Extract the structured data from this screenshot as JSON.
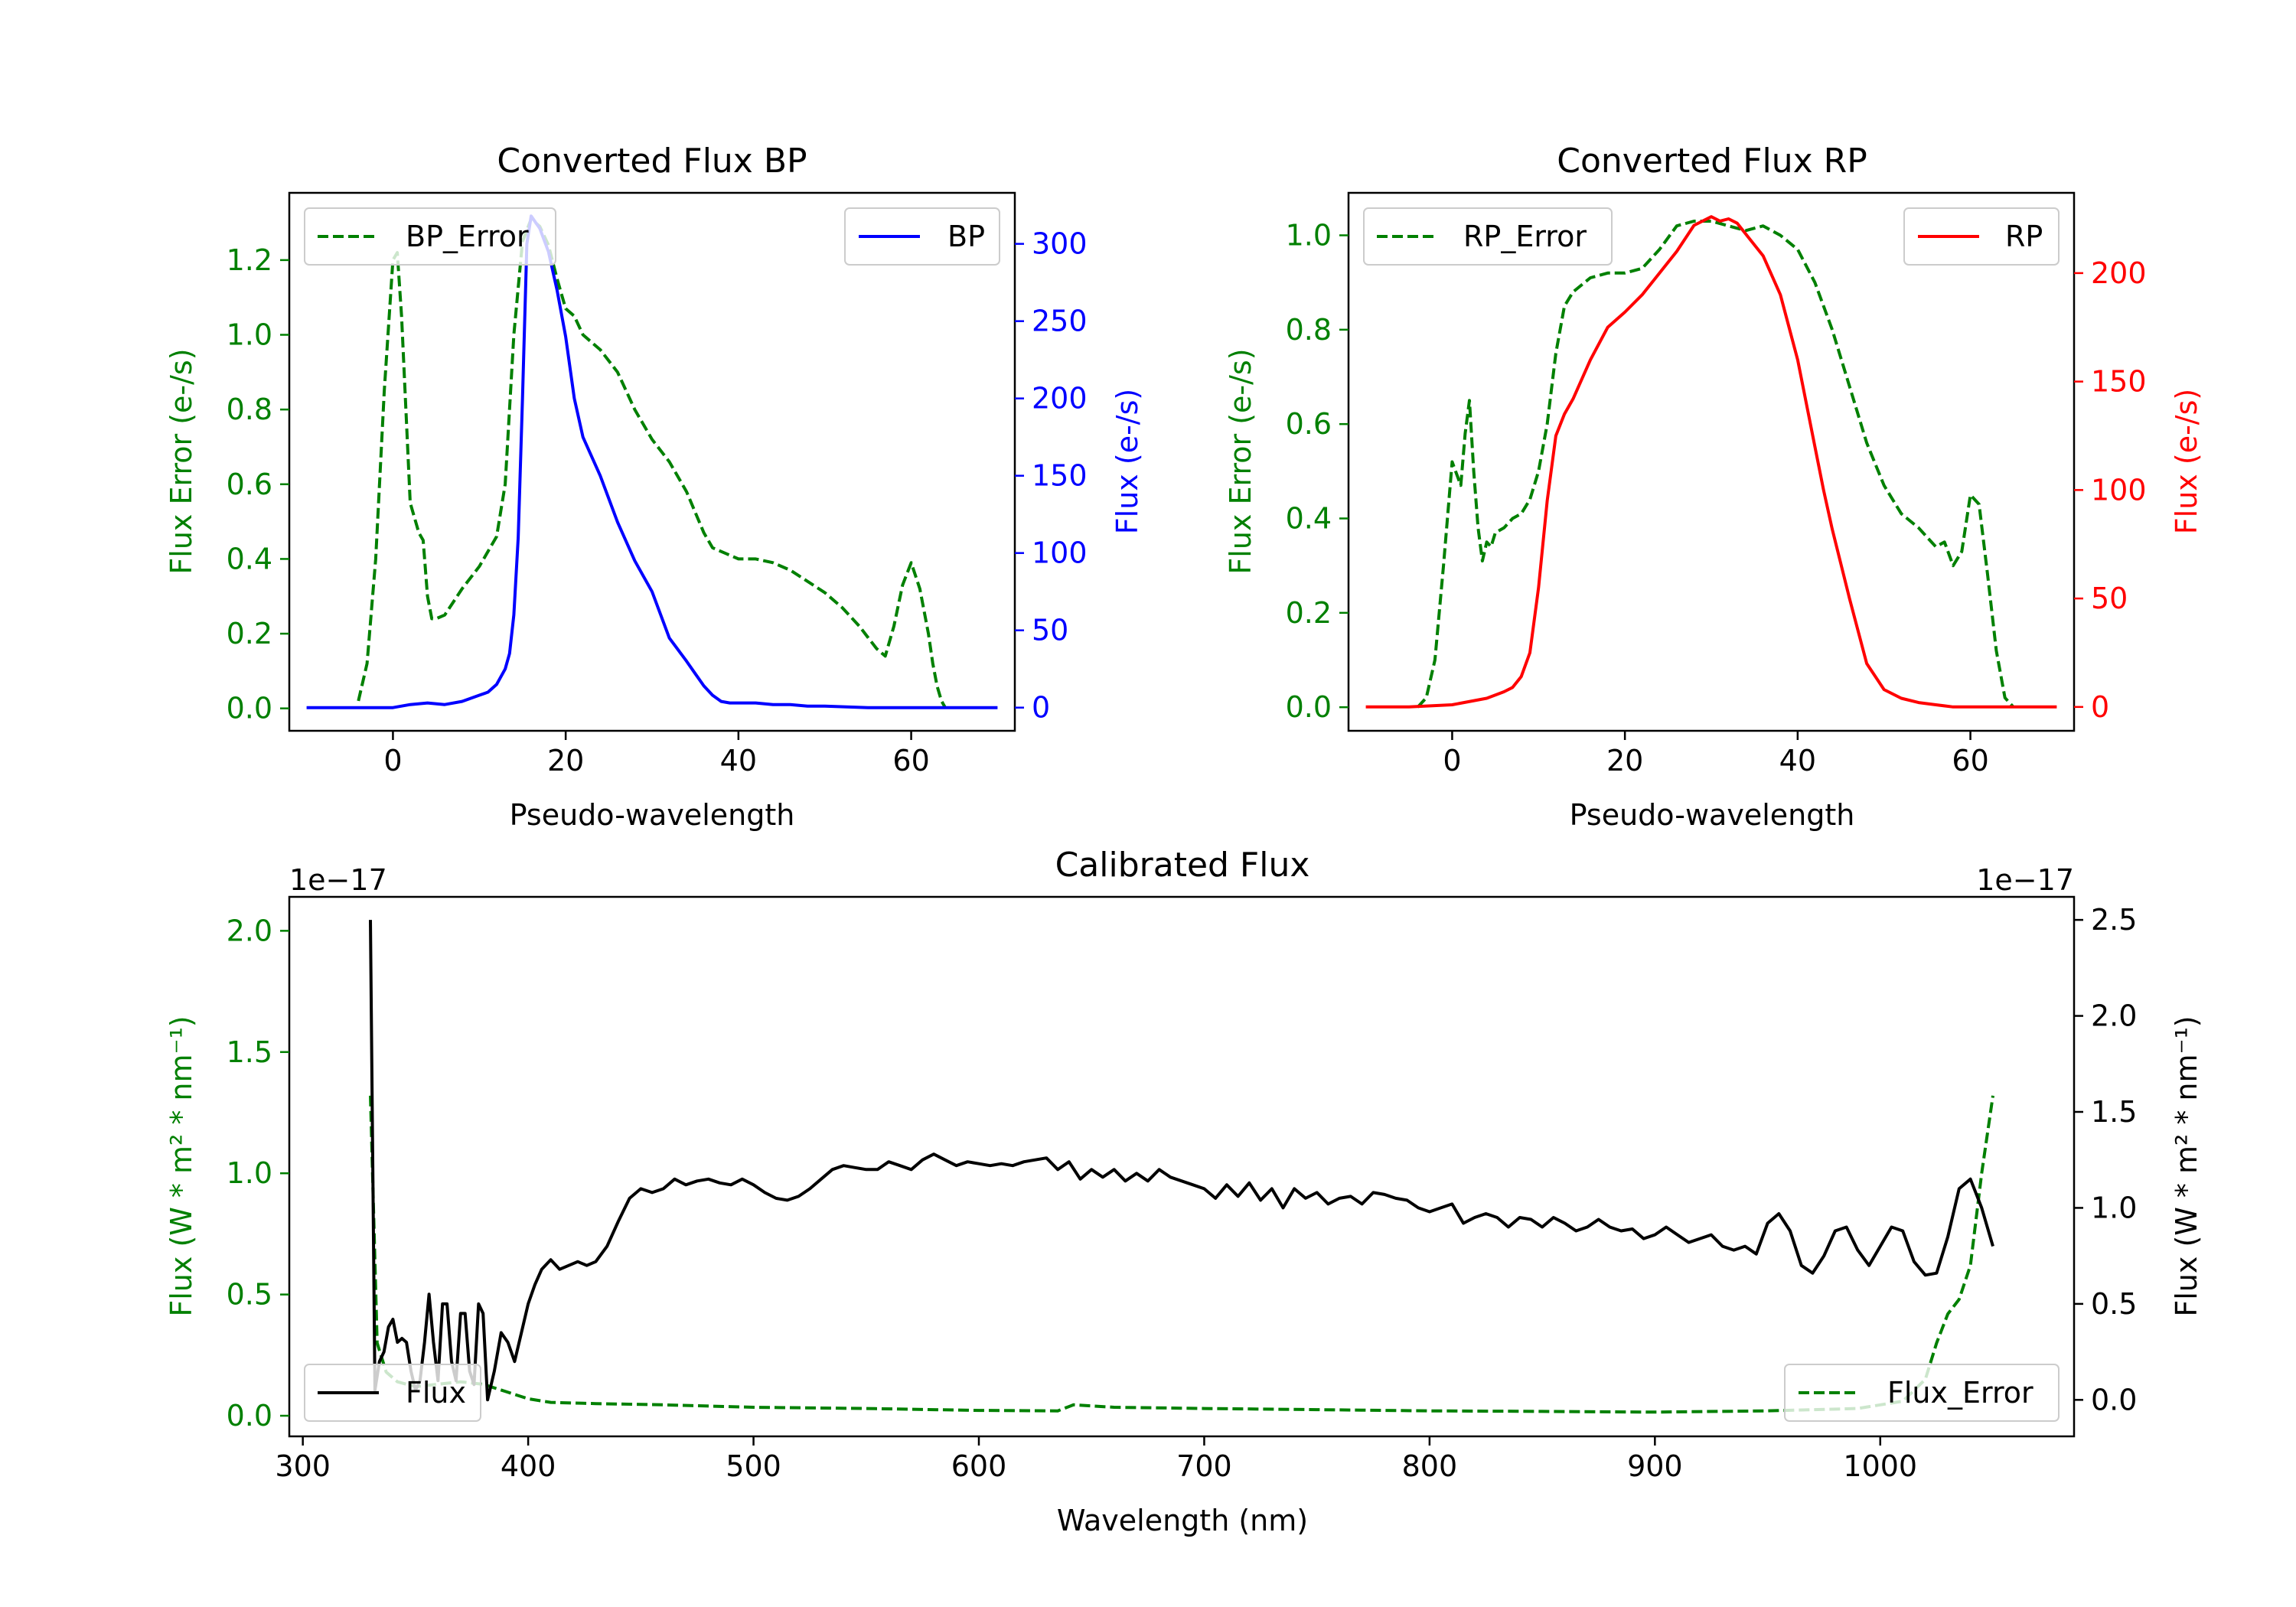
{
  "figure": {
    "background": "#ffffff"
  },
  "colors": {
    "green": "#008000",
    "blue": "#0000ff",
    "red": "#ff0000",
    "black": "#000000",
    "axis": "#000000"
  },
  "chart_data": [
    {
      "id": "bp",
      "type": "line",
      "title": "Converted Flux BP",
      "xlabel": "Pseudo-wavelength",
      "ylabel_left": "Flux Error (e-/s)",
      "ylabel_right": "Flux (e-/s)",
      "xlim": [
        -12,
        72
      ],
      "ylim_left": [
        -0.06,
        1.38
      ],
      "ylim_right": [
        -15,
        333
      ],
      "xticks": [
        0,
        20,
        40,
        60
      ],
      "xtick_labels": [
        "0",
        "20",
        "40",
        "60"
      ],
      "yticks_left": [
        0.0,
        0.2,
        0.4,
        0.6,
        0.8,
        1.0,
        1.2
      ],
      "ytick_labels_left": [
        "0.0",
        "0.2",
        "0.4",
        "0.6",
        "0.8",
        "1.0",
        "1.2"
      ],
      "yticks_right": [
        0,
        50,
        100,
        150,
        200,
        250,
        300
      ],
      "ytick_labels_right": [
        "0",
        "50",
        "100",
        "150",
        "200",
        "250",
        "300"
      ],
      "left_color": "green",
      "right_color": "blue",
      "legend_left": {
        "label": "BP_Error",
        "position": "upper-left",
        "style": "dashed",
        "color": "green"
      },
      "legend_right": {
        "label": "BP",
        "position": "upper-right",
        "style": "solid",
        "color": "blue"
      },
      "series": [
        {
          "name": "BP_Error",
          "axis": "left",
          "style": "dashed",
          "color": "green",
          "x": [
            -4,
            -3,
            -2,
            -1,
            0,
            0.5,
            1,
            2,
            3,
            3.5,
            4,
            4.5,
            5,
            6,
            8,
            10,
            12,
            13,
            14,
            15,
            16,
            17,
            18,
            19,
            20,
            21,
            22,
            23,
            24,
            26,
            28,
            30,
            32,
            34,
            36,
            37,
            38,
            40,
            42,
            44,
            46,
            48,
            50,
            52,
            54,
            55,
            56,
            57,
            58,
            59,
            60,
            61,
            62,
            62.5,
            63,
            63.5,
            64
          ],
          "y": [
            0.02,
            0.12,
            0.4,
            0.85,
            1.2,
            1.22,
            1.05,
            0.55,
            0.47,
            0.45,
            0.3,
            0.24,
            0.24,
            0.25,
            0.32,
            0.38,
            0.46,
            0.6,
            1.0,
            1.25,
            1.31,
            1.29,
            1.24,
            1.15,
            1.07,
            1.05,
            1.0,
            0.98,
            0.96,
            0.9,
            0.8,
            0.72,
            0.66,
            0.58,
            0.47,
            0.43,
            0.42,
            0.4,
            0.4,
            0.39,
            0.37,
            0.34,
            0.31,
            0.27,
            0.22,
            0.19,
            0.16,
            0.14,
            0.22,
            0.33,
            0.39,
            0.32,
            0.2,
            0.12,
            0.06,
            0.02,
            0.0
          ]
        },
        {
          "name": "BP",
          "axis": "right",
          "style": "solid",
          "color": "blue",
          "x": [
            -10,
            -6,
            -4,
            -2,
            0,
            2,
            4,
            6,
            8,
            10,
            11,
            12,
            13,
            13.5,
            14,
            14.5,
            15,
            15.5,
            16,
            17,
            18,
            19,
            20,
            21,
            22,
            24,
            26,
            28,
            30,
            32,
            34,
            35,
            36,
            37,
            38,
            39,
            40,
            42,
            44,
            46,
            48,
            50,
            55,
            60,
            65,
            70
          ],
          "y": [
            0,
            0,
            0,
            0,
            0,
            2,
            3,
            2,
            4,
            8,
            10,
            15,
            25,
            35,
            60,
            110,
            200,
            300,
            318,
            310,
            295,
            270,
            240,
            200,
            175,
            150,
            120,
            95,
            75,
            45,
            30,
            22,
            14,
            8,
            4,
            3,
            3,
            3,
            2,
            2,
            1,
            1,
            0,
            0,
            0,
            0
          ]
        }
      ]
    },
    {
      "id": "rp",
      "type": "line",
      "title": "Converted Flux RP",
      "xlabel": "Pseudo-wavelength",
      "ylabel_left": "Flux Error (e-/s)",
      "ylabel_right": "Flux (e-/s)",
      "xlim": [
        -12,
        72
      ],
      "ylim_left": [
        -0.05,
        1.09
      ],
      "ylim_right": [
        -11,
        237
      ],
      "xticks": [
        0,
        20,
        40,
        60
      ],
      "xtick_labels": [
        "0",
        "20",
        "40",
        "60"
      ],
      "yticks_left": [
        0.0,
        0.2,
        0.4,
        0.6,
        0.8,
        1.0
      ],
      "ytick_labels_left": [
        "0.0",
        "0.2",
        "0.4",
        "0.6",
        "0.8",
        "1.0"
      ],
      "yticks_right": [
        0,
        50,
        100,
        150,
        200
      ],
      "ytick_labels_right": [
        "0",
        "50",
        "100",
        "150",
        "200"
      ],
      "left_color": "green",
      "right_color": "red",
      "legend_left": {
        "label": "RP_Error",
        "position": "upper-left",
        "style": "dashed",
        "color": "green"
      },
      "legend_right": {
        "label": "RP",
        "position": "upper-right",
        "style": "solid",
        "color": "red"
      },
      "series": [
        {
          "name": "RP_Error",
          "axis": "left",
          "style": "dashed",
          "color": "green",
          "x": [
            -4,
            -3,
            -2,
            -1,
            0,
            1,
            1.5,
            2,
            2.5,
            3,
            3.5,
            4,
            4.5,
            5,
            6,
            7,
            8,
            9,
            10,
            11,
            12,
            13,
            14,
            16,
            18,
            20,
            22,
            24,
            26,
            28,
            30,
            32,
            34,
            36,
            38,
            40,
            42,
            44,
            46,
            48,
            50,
            52,
            54,
            55,
            56,
            57,
            58,
            59,
            60,
            61,
            62,
            63,
            64,
            65
          ],
          "y": [
            0.0,
            0.02,
            0.1,
            0.3,
            0.52,
            0.47,
            0.58,
            0.65,
            0.5,
            0.38,
            0.31,
            0.35,
            0.34,
            0.37,
            0.38,
            0.4,
            0.41,
            0.44,
            0.5,
            0.6,
            0.75,
            0.85,
            0.88,
            0.91,
            0.92,
            0.92,
            0.93,
            0.97,
            1.02,
            1.03,
            1.03,
            1.02,
            1.01,
            1.02,
            1.0,
            0.97,
            0.9,
            0.8,
            0.68,
            0.56,
            0.47,
            0.41,
            0.38,
            0.36,
            0.34,
            0.35,
            0.3,
            0.33,
            0.45,
            0.43,
            0.28,
            0.12,
            0.02,
            0.0
          ]
        },
        {
          "name": "RP",
          "axis": "right",
          "style": "solid",
          "color": "red",
          "x": [
            -10,
            -5,
            0,
            4,
            6,
            7,
            8,
            9,
            10,
            11,
            12,
            13,
            14,
            16,
            18,
            20,
            22,
            24,
            26,
            28,
            30,
            31,
            32,
            33,
            34,
            36,
            38,
            40,
            42,
            43,
            44,
            46,
            48,
            50,
            52,
            54,
            56,
            58,
            60,
            65,
            70
          ],
          "y": [
            0,
            0,
            1,
            4,
            7,
            9,
            14,
            25,
            55,
            95,
            125,
            135,
            142,
            160,
            175,
            182,
            190,
            200,
            210,
            222,
            226,
            224,
            225,
            223,
            218,
            208,
            190,
            160,
            120,
            100,
            82,
            50,
            20,
            8,
            4,
            2,
            1,
            0,
            0,
            0,
            0
          ]
        }
      ]
    },
    {
      "id": "calibrated",
      "type": "line",
      "title": "Calibrated Flux",
      "xlabel": "Wavelength (nm)",
      "ylabel_left": "Flux (W * m² * nm⁻¹)",
      "ylabel_right": "Flux (W * m² * nm⁻¹)",
      "offset_left": "1e−17",
      "offset_right": "1e−17",
      "xlim": [
        294,
        1086
      ],
      "ylim_left": [
        -0.085,
        2.14
      ],
      "ylim_right": [
        -0.19,
        2.62
      ],
      "xticks": [
        300,
        400,
        500,
        600,
        700,
        800,
        900,
        1000
      ],
      "xtick_labels": [
        "300",
        "400",
        "500",
        "600",
        "700",
        "800",
        "900",
        "1000"
      ],
      "yticks_left": [
        0.0,
        0.5,
        1.0,
        1.5,
        2.0
      ],
      "ytick_labels_left": [
        "0.0",
        "0.5",
        "1.0",
        "1.5",
        "2.0"
      ],
      "yticks_right": [
        0.0,
        0.5,
        1.0,
        1.5,
        2.0,
        2.5
      ],
      "ytick_labels_right": [
        "0.0",
        "0.5",
        "1.0",
        "1.5",
        "2.0",
        "2.5"
      ],
      "left_color": "green",
      "right_color": "black",
      "legend_left": {
        "label": "Flux",
        "position": "lower-left",
        "style": "solid",
        "color": "black"
      },
      "legend_right": {
        "label": "Flux_Error",
        "position": "lower-right",
        "style": "dashed",
        "color": "green"
      },
      "series": [
        {
          "name": "Flux_Error",
          "axis": "left",
          "style": "dashed",
          "color": "green",
          "x": [
            330,
            333,
            337,
            342,
            350,
            360,
            370,
            380,
            390,
            400,
            410,
            430,
            460,
            500,
            550,
            600,
            635,
            642,
            660,
            700,
            750,
            800,
            850,
            900,
            950,
            990,
            1010,
            1020,
            1025,
            1030,
            1035,
            1040,
            1045,
            1050
          ],
          "y": [
            1.32,
            0.3,
            0.18,
            0.14,
            0.12,
            0.13,
            0.14,
            0.13,
            0.1,
            0.07,
            0.055,
            0.05,
            0.045,
            0.035,
            0.03,
            0.022,
            0.02,
            0.045,
            0.035,
            0.03,
            0.025,
            0.02,
            0.018,
            0.015,
            0.02,
            0.03,
            0.06,
            0.15,
            0.3,
            0.42,
            0.48,
            0.62,
            1.0,
            1.32
          ]
        },
        {
          "name": "Flux",
          "axis": "right",
          "style": "solid",
          "color": "black",
          "x": [
            330,
            332,
            334,
            336,
            338,
            340,
            342,
            344,
            346,
            348,
            350,
            352,
            354,
            356,
            358,
            360,
            362,
            364,
            366,
            368,
            370,
            372,
            374,
            376,
            378,
            380,
            382,
            385,
            388,
            391,
            394,
            397,
            400,
            403,
            406,
            410,
            414,
            418,
            422,
            426,
            430,
            435,
            440,
            445,
            450,
            455,
            460,
            465,
            470,
            475,
            480,
            485,
            490,
            495,
            500,
            505,
            510,
            515,
            520,
            525,
            530,
            535,
            540,
            545,
            550,
            555,
            560,
            565,
            570,
            575,
            580,
            585,
            590,
            595,
            600,
            605,
            610,
            615,
            620,
            625,
            630,
            635,
            640,
            645,
            650,
            655,
            660,
            665,
            670,
            675,
            680,
            685,
            690,
            695,
            700,
            705,
            710,
            715,
            720,
            725,
            730,
            735,
            740,
            745,
            750,
            755,
            760,
            765,
            770,
            775,
            780,
            785,
            790,
            795,
            800,
            805,
            810,
            815,
            820,
            825,
            830,
            835,
            840,
            845,
            850,
            855,
            860,
            865,
            870,
            875,
            880,
            885,
            890,
            895,
            900,
            905,
            910,
            915,
            920,
            925,
            930,
            935,
            940,
            945,
            950,
            955,
            960,
            965,
            970,
            975,
            980,
            985,
            990,
            995,
            1000,
            1005,
            1010,
            1015,
            1020,
            1025,
            1030,
            1035,
            1040,
            1045,
            1050
          ],
          "y": [
            2.5,
            0.05,
            0.2,
            0.25,
            0.38,
            0.42,
            0.3,
            0.32,
            0.3,
            0.15,
            0.05,
            0.1,
            0.3,
            0.55,
            0.3,
            0.1,
            0.5,
            0.5,
            0.2,
            0.1,
            0.45,
            0.45,
            0.15,
            0.08,
            0.5,
            0.45,
            0.0,
            0.15,
            0.35,
            0.3,
            0.2,
            0.35,
            0.5,
            0.6,
            0.68,
            0.73,
            0.68,
            0.7,
            0.72,
            0.7,
            0.72,
            0.8,
            0.93,
            1.05,
            1.1,
            1.08,
            1.1,
            1.15,
            1.12,
            1.14,
            1.15,
            1.13,
            1.12,
            1.15,
            1.12,
            1.08,
            1.05,
            1.04,
            1.06,
            1.1,
            1.15,
            1.2,
            1.22,
            1.21,
            1.2,
            1.2,
            1.24,
            1.22,
            1.2,
            1.25,
            1.28,
            1.25,
            1.22,
            1.24,
            1.23,
            1.22,
            1.23,
            1.22,
            1.24,
            1.25,
            1.26,
            1.2,
            1.24,
            1.15,
            1.2,
            1.16,
            1.2,
            1.14,
            1.18,
            1.14,
            1.2,
            1.16,
            1.14,
            1.12,
            1.1,
            1.05,
            1.12,
            1.06,
            1.13,
            1.04,
            1.1,
            1.0,
            1.1,
            1.05,
            1.08,
            1.02,
            1.05,
            1.06,
            1.02,
            1.08,
            1.07,
            1.05,
            1.04,
            1.0,
            0.98,
            1.0,
            1.02,
            0.92,
            0.95,
            0.97,
            0.95,
            0.9,
            0.95,
            0.94,
            0.9,
            0.95,
            0.92,
            0.88,
            0.9,
            0.94,
            0.9,
            0.88,
            0.89,
            0.84,
            0.86,
            0.9,
            0.86,
            0.82,
            0.84,
            0.86,
            0.8,
            0.78,
            0.8,
            0.76,
            0.92,
            0.97,
            0.88,
            0.7,
            0.66,
            0.75,
            0.88,
            0.9,
            0.78,
            0.7,
            0.8,
            0.9,
            0.88,
            0.72,
            0.65,
            0.66,
            0.85,
            1.1,
            1.15,
            1.0,
            0.8
          ]
        }
      ]
    }
  ]
}
